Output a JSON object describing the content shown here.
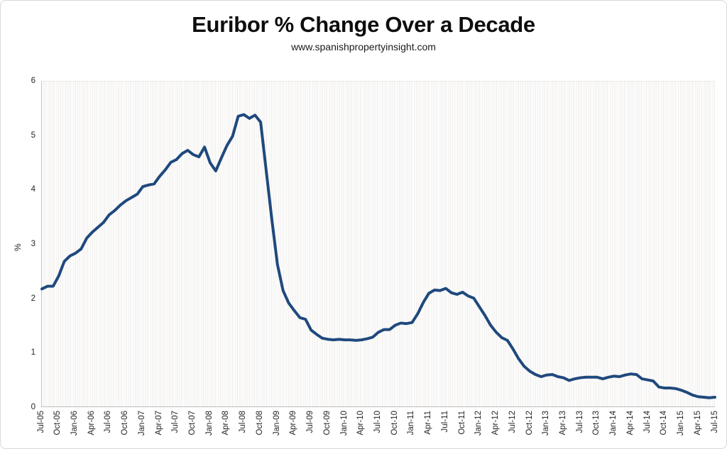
{
  "page": {
    "title": "Euribor % Change Over a Decade",
    "subtitle": "www.spanishpropertyinsight.com"
  },
  "chart_data": {
    "type": "line",
    "title": "Euribor % Change Over a Decade",
    "subtitle": "www.spanishpropertyinsight.com",
    "xlabel": "",
    "ylabel": "%",
    "ylim": [
      0,
      6
    ],
    "y_ticks": [
      0,
      1,
      2,
      3,
      4,
      5,
      6
    ],
    "x_tick_interval": 3,
    "legend_position": "none",
    "grid": "fine-vertical-stripes",
    "line_color": "#1F497D",
    "line_width": 4,
    "x": [
      "Jul-05",
      "Aug-05",
      "Sep-05",
      "Oct-05",
      "Nov-05",
      "Dec-05",
      "Jan-06",
      "Feb-06",
      "Mar-06",
      "Apr-06",
      "May-06",
      "Jun-06",
      "Jul-06",
      "Aug-06",
      "Sep-06",
      "Oct-06",
      "Nov-06",
      "Dec-06",
      "Jan-07",
      "Feb-07",
      "Mar-07",
      "Apr-07",
      "May-07",
      "Jun-07",
      "Jul-07",
      "Aug-07",
      "Sep-07",
      "Oct-07",
      "Nov-07",
      "Dec-07",
      "Jan-08",
      "Feb-08",
      "Mar-08",
      "Apr-08",
      "May-08",
      "Jun-08",
      "Jul-08",
      "Aug-08",
      "Sep-08",
      "Oct-08",
      "Nov-08",
      "Dec-08",
      "Jan-09",
      "Feb-09",
      "Mar-09",
      "Apr-09",
      "May-09",
      "Jun-09",
      "Jul-09",
      "Aug-09",
      "Sep-09",
      "Oct-09",
      "Nov-09",
      "Dec-09",
      "Jan-10",
      "Feb-10",
      "Mar-10",
      "Apr-10",
      "May-10",
      "Jun-10",
      "Jul-10",
      "Aug-10",
      "Sep-10",
      "Oct-10",
      "Nov-10",
      "Dec-10",
      "Jan-11",
      "Feb-11",
      "Mar-11",
      "Apr-11",
      "May-11",
      "Jun-11",
      "Jul-11",
      "Aug-11",
      "Sep-11",
      "Oct-11",
      "Nov-11",
      "Dec-11",
      "Jan-12",
      "Feb-12",
      "Mar-12",
      "Apr-12",
      "May-12",
      "Jun-12",
      "Jul-12",
      "Aug-12",
      "Sep-12",
      "Oct-12",
      "Nov-12",
      "Dec-12",
      "Jan-13",
      "Feb-13",
      "Mar-13",
      "Apr-13",
      "May-13",
      "Jun-13",
      "Jul-13",
      "Aug-13",
      "Sep-13",
      "Oct-13",
      "Nov-13",
      "Dec-13",
      "Jan-14",
      "Feb-14",
      "Mar-14",
      "Apr-14",
      "May-14",
      "Jun-14",
      "Jul-14",
      "Aug-14",
      "Sep-14",
      "Oct-14",
      "Nov-14",
      "Dec-14",
      "Jan-15",
      "Feb-15",
      "Mar-15",
      "Apr-15",
      "May-15",
      "Jun-15",
      "Jul-15"
    ],
    "values": [
      2.17,
      2.22,
      2.22,
      2.41,
      2.68,
      2.78,
      2.83,
      2.91,
      3.11,
      3.22,
      3.31,
      3.4,
      3.54,
      3.62,
      3.72,
      3.8,
      3.86,
      3.92,
      4.06,
      4.09,
      4.11,
      4.25,
      4.37,
      4.51,
      4.56,
      4.67,
      4.73,
      4.65,
      4.61,
      4.79,
      4.5,
      4.35,
      4.59,
      4.82,
      4.99,
      5.36,
      5.39,
      5.32,
      5.38,
      5.25,
      4.35,
      3.45,
      2.62,
      2.14,
      1.91,
      1.77,
      1.64,
      1.61,
      1.41,
      1.33,
      1.26,
      1.24,
      1.23,
      1.24,
      1.23,
      1.23,
      1.22,
      1.23,
      1.25,
      1.28,
      1.37,
      1.42,
      1.42,
      1.5,
      1.54,
      1.53,
      1.55,
      1.71,
      1.92,
      2.09,
      2.15,
      2.14,
      2.18,
      2.1,
      2.07,
      2.11,
      2.04,
      2.0,
      1.84,
      1.68,
      1.5,
      1.37,
      1.27,
      1.22,
      1.06,
      0.88,
      0.74,
      0.65,
      0.59,
      0.55,
      0.58,
      0.59,
      0.55,
      0.53,
      0.48,
      0.51,
      0.53,
      0.54,
      0.54,
      0.54,
      0.51,
      0.54,
      0.56,
      0.55,
      0.58,
      0.6,
      0.59,
      0.51,
      0.49,
      0.47,
      0.36,
      0.34,
      0.34,
      0.33,
      0.3,
      0.26,
      0.21,
      0.18,
      0.17,
      0.16,
      0.17
    ]
  }
}
